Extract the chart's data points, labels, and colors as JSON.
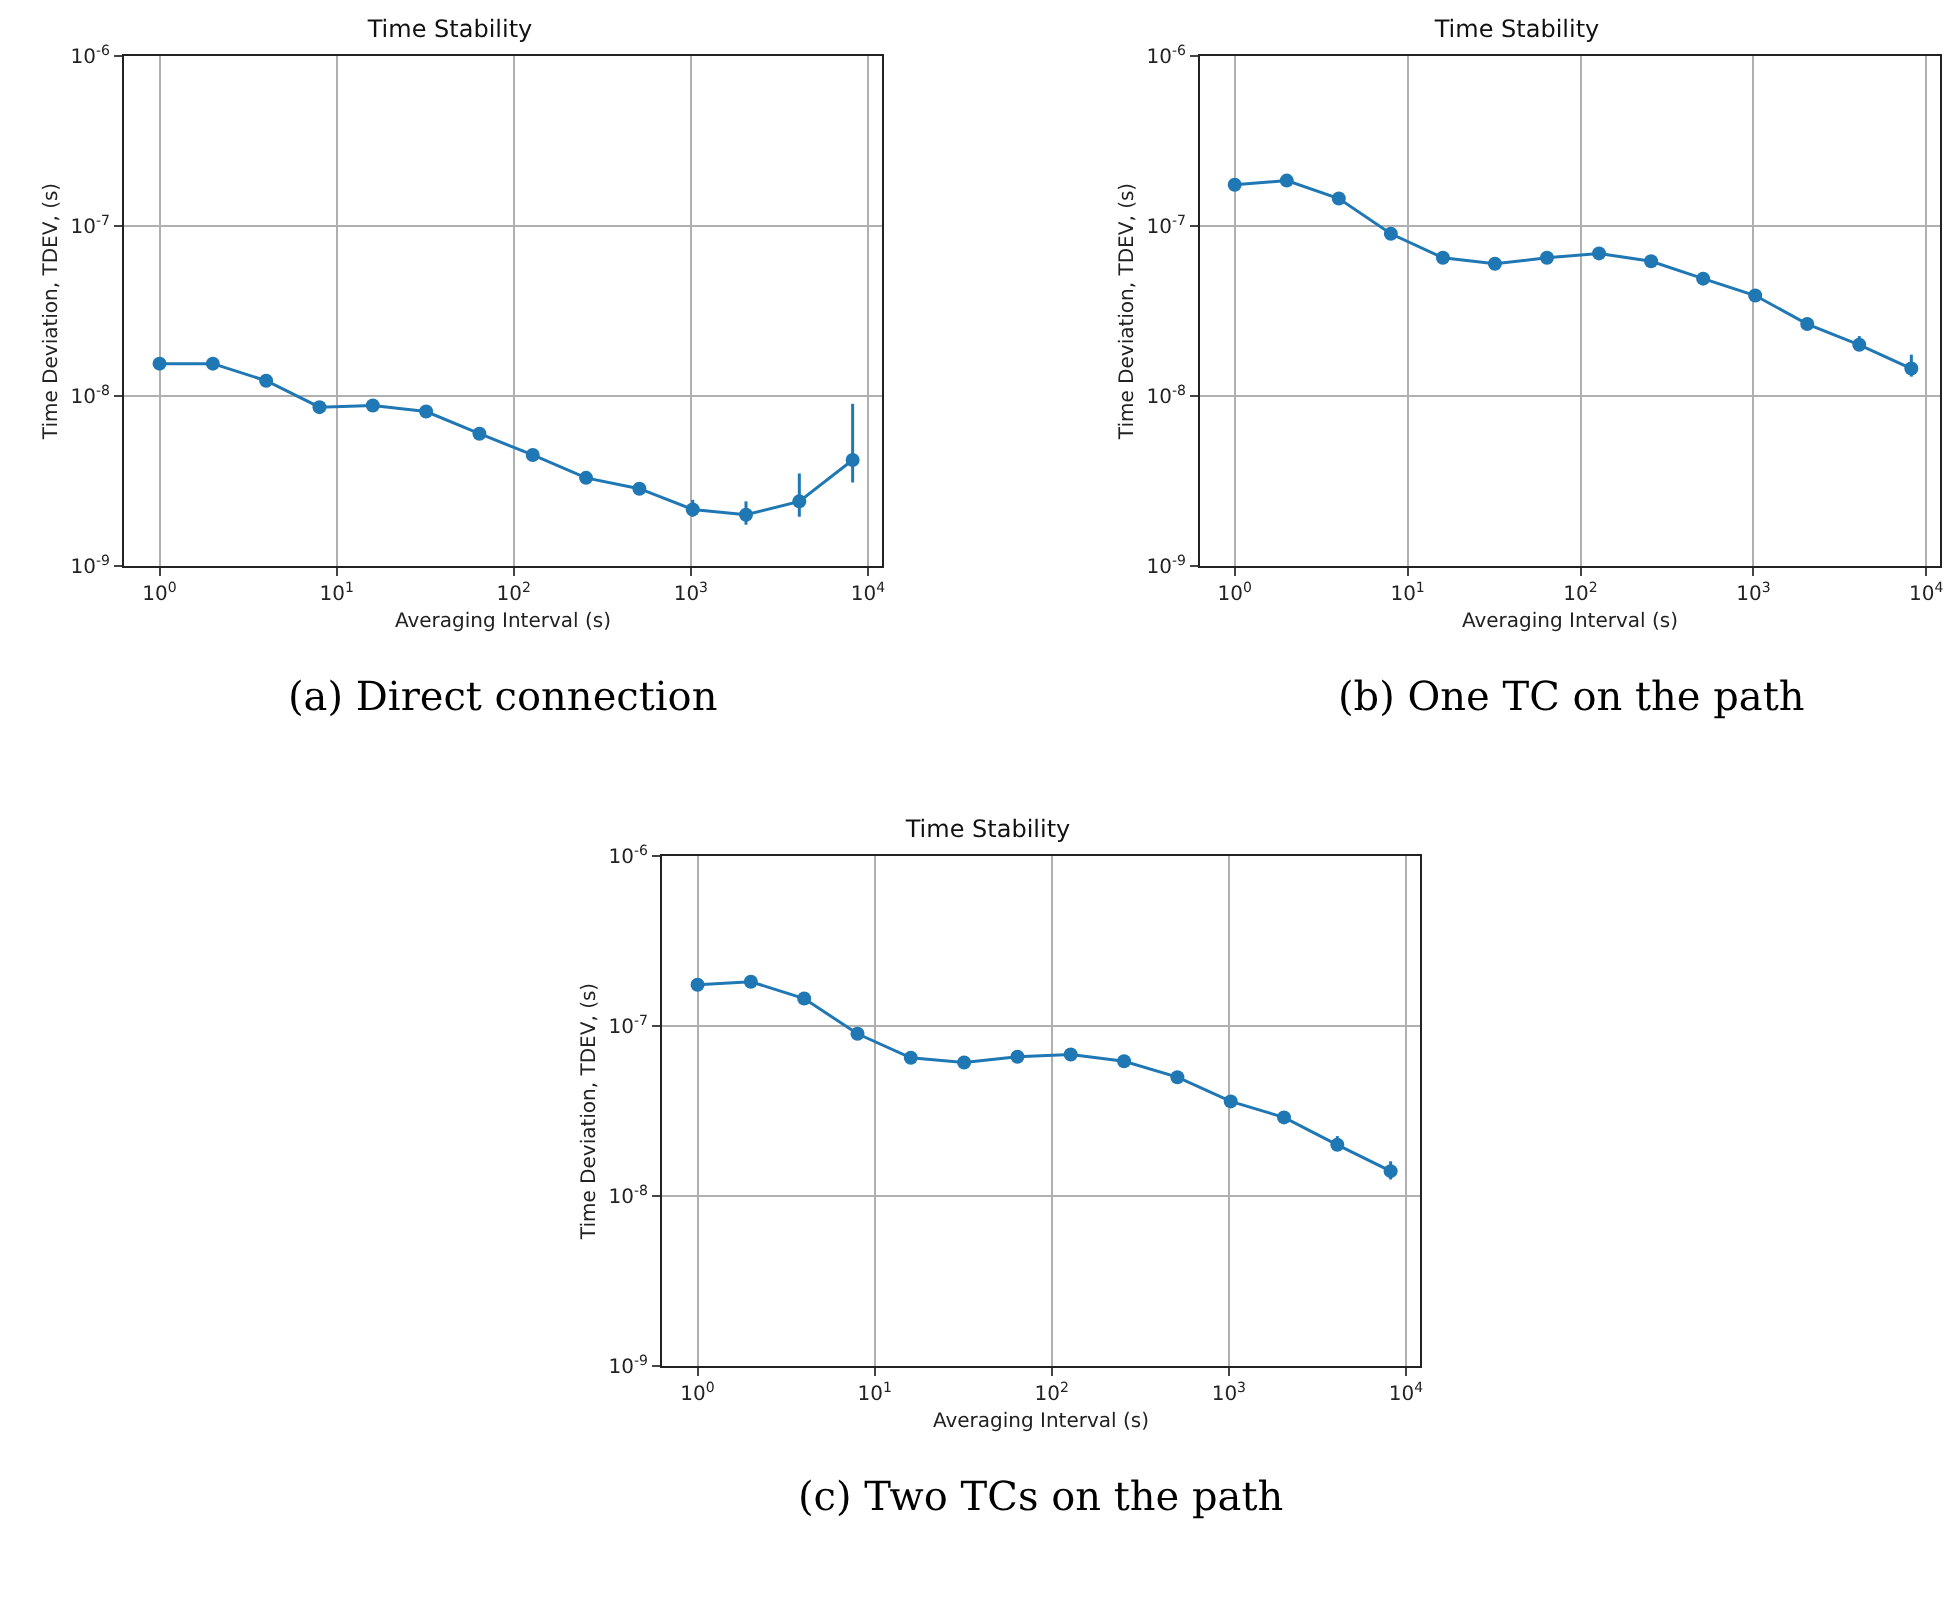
{
  "chart_data": [
    {
      "type": "line",
      "title": "Time Stability",
      "xlabel": "Averaging Interval (s)",
      "ylabel": "Time Deviation, TDEV, (s)",
      "annotations": [
        "(a) Direct connection"
      ],
      "x": [
        1,
        2,
        4,
        8,
        16,
        32,
        64,
        128,
        256,
        512,
        1024,
        2048,
        4096,
        8192
      ],
      "series": [
        {
          "color": "#1f77b4",
          "values": [
            1.55e-08,
            1.55e-08,
            1.23e-08,
            8.6e-09,
            8.8e-09,
            8.1e-09,
            6e-09,
            4.5e-09,
            3.3e-09,
            2.85e-09,
            2.15e-09,
            2e-09,
            2.4e-09,
            4.2e-09
          ],
          "errors": [
            null,
            null,
            null,
            null,
            null,
            null,
            null,
            null,
            null,
            null,
            [
              1.95e-09,
              2.45e-09
            ],
            [
              1.75e-09,
              2.4e-09
            ],
            [
              1.95e-09,
              3.5e-09
            ],
            [
              3.1e-09,
              9e-09
            ]
          ]
        }
      ],
      "log": "xy",
      "xlim": [
        0.63,
        12000
      ],
      "ylim": [
        1e-09,
        1e-06
      ],
      "xticks": [
        {
          "value": 1,
          "label": "10$^{0}$"
        },
        {
          "value": 10,
          "label": "10$^{1}$"
        },
        {
          "value": 100,
          "label": "10$^{2}$"
        },
        {
          "value": 1000,
          "label": "10$^{3}$"
        },
        {
          "value": 10000,
          "label": "10$^{4}$"
        }
      ],
      "yticks": [
        {
          "value": 1e-09,
          "label": "10$^{-9}$"
        },
        {
          "value": 1e-08,
          "label": "10$^{-8}$"
        },
        {
          "value": 1e-07,
          "label": "10$^{-7}$"
        },
        {
          "value": 1e-06,
          "label": "10$^{-6}$"
        }
      ],
      "grid": true,
      "marker": "circle",
      "line_style": "solid"
    },
    {
      "type": "line",
      "title": "Time Stability",
      "xlabel": "Averaging Interval (s)",
      "ylabel": "Time Deviation, TDEV, (s)",
      "annotations": [
        "(b) One TC on the path"
      ],
      "x": [
        1,
        2,
        4,
        8,
        16,
        32,
        64,
        128,
        256,
        512,
        1024,
        2048,
        4096,
        8192
      ],
      "series": [
        {
          "color": "#1f77b4",
          "values": [
            1.75e-07,
            1.85e-07,
            1.45e-07,
            9e-08,
            6.5e-08,
            6e-08,
            6.5e-08,
            6.9e-08,
            6.2e-08,
            4.9e-08,
            3.9e-08,
            2.65e-08,
            2e-08,
            1.45e-08
          ],
          "errors": [
            null,
            null,
            null,
            null,
            null,
            null,
            null,
            null,
            null,
            null,
            null,
            null,
            [
              1.85e-08,
              2.25e-08
            ],
            [
              1.3e-08,
              1.75e-08
            ]
          ]
        }
      ],
      "log": "xy",
      "xlim": [
        0.63,
        12000
      ],
      "ylim": [
        1e-09,
        1e-06
      ],
      "xticks": [
        {
          "value": 1,
          "label": "10$^{0}$"
        },
        {
          "value": 10,
          "label": "10$^{1}$"
        },
        {
          "value": 100,
          "label": "10$^{2}$"
        },
        {
          "value": 1000,
          "label": "10$^{3}$"
        },
        {
          "value": 10000,
          "label": "10$^{4}$"
        }
      ],
      "yticks": [
        {
          "value": 1e-09,
          "label": "10$^{-9}$"
        },
        {
          "value": 1e-08,
          "label": "10$^{-8}$"
        },
        {
          "value": 1e-07,
          "label": "10$^{-7}$"
        },
        {
          "value": 1e-06,
          "label": "10$^{-6}$"
        }
      ],
      "grid": true,
      "marker": "circle",
      "line_style": "solid"
    },
    {
      "type": "line",
      "title": "Time Stability",
      "xlabel": "Averaging Interval (s)",
      "ylabel": "Time Deviation, TDEV, (s)",
      "annotations": [
        "(c) Two TCs on the path"
      ],
      "x": [
        1,
        2,
        4,
        8,
        16,
        32,
        64,
        128,
        256,
        512,
        1024,
        2048,
        4096,
        8192
      ],
      "series": [
        {
          "color": "#1f77b4",
          "values": [
            1.75e-07,
            1.82e-07,
            1.45e-07,
            9e-08,
            6.5e-08,
            6.1e-08,
            6.6e-08,
            6.8e-08,
            6.2e-08,
            5e-08,
            3.6e-08,
            2.9e-08,
            2e-08,
            1.4e-08
          ],
          "errors": [
            null,
            null,
            null,
            null,
            null,
            null,
            null,
            null,
            null,
            null,
            null,
            null,
            [
              1.85e-08,
              2.25e-08
            ],
            [
              1.25e-08,
              1.6e-08
            ]
          ]
        }
      ],
      "log": "xy",
      "xlim": [
        0.63,
        12000
      ],
      "ylim": [
        1e-09,
        1e-06
      ],
      "xticks": [
        {
          "value": 1,
          "label": "10$^{0}$"
        },
        {
          "value": 10,
          "label": "10$^{1}$"
        },
        {
          "value": 100,
          "label": "10$^{2}$"
        },
        {
          "value": 1000,
          "label": "10$^{3}$"
        },
        {
          "value": 10000,
          "label": "10$^{4}$"
        }
      ],
      "yticks": [
        {
          "value": 1e-09,
          "label": "10$^{-9}$"
        },
        {
          "value": 1e-08,
          "label": "10$^{-8}$"
        },
        {
          "value": 1e-07,
          "label": "10$^{-7}$"
        },
        {
          "value": 1e-06,
          "label": "10$^{-6}$"
        }
      ],
      "grid": true,
      "marker": "circle",
      "line_style": "solid"
    }
  ]
}
